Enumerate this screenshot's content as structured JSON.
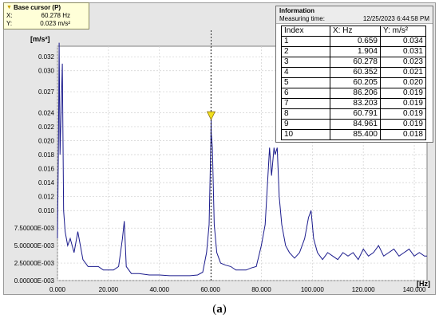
{
  "base_cursor": {
    "title": "Base cursor (P)",
    "x_label": "X:",
    "x_value": "60.278 Hz",
    "y_label": "Y:",
    "y_value": "0.023 m/s²"
  },
  "information": {
    "title": "Information",
    "measuring_time_label": "Measuring time:",
    "measuring_time_value": "12/25/2023 6:44:58 PM",
    "columns": [
      "Index",
      "X: Hz",
      "Y: m/s²"
    ],
    "rows": [
      [
        "1",
        "0.659",
        "0.034"
      ],
      [
        "2",
        "1.904",
        "0.031"
      ],
      [
        "3",
        "60.278",
        "0.023"
      ],
      [
        "4",
        "60.352",
        "0.021"
      ],
      [
        "5",
        "60.205",
        "0.020"
      ],
      [
        "6",
        "86.206",
        "0.019"
      ],
      [
        "7",
        "83.203",
        "0.019"
      ],
      [
        "8",
        "60.791",
        "0.019"
      ],
      [
        "9",
        "84.961",
        "0.019"
      ],
      [
        "10",
        "85.400",
        "0.018"
      ]
    ]
  },
  "caption": {
    "open": "(",
    "letter": "a",
    "close": ")"
  },
  "chart_data": {
    "type": "line",
    "title": "",
    "xlabel": "[Hz]",
    "ylabel": "[m/s²]",
    "xlim": [
      0,
      145
    ],
    "ylim": [
      0,
      0.0335
    ],
    "x_ticks": [
      0,
      20,
      40,
      60,
      80,
      100,
      120,
      140
    ],
    "x_tick_labels": [
      "0.000",
      "20.000",
      "40.000",
      "60.000",
      "80.000",
      "100.000",
      "120.000",
      "140.000"
    ],
    "y_ticks": [
      0,
      0.0025,
      0.005,
      0.0075,
      0.01,
      0.012,
      0.014,
      0.016,
      0.018,
      0.02,
      0.022,
      0.024,
      0.027,
      0.03,
      0.032
    ],
    "y_tick_labels": [
      "0.00000E-003",
      "2.50000E-003",
      "5.00000E-003",
      "7.50000E-003",
      "0.010",
      "0.012",
      "0.014",
      "0.016",
      "0.018",
      "0.020",
      "0.022",
      "0.024",
      "0.027",
      "0.030",
      "0.032"
    ],
    "grid": true,
    "line_color": "#1a1a8c",
    "cursor_color": "#f0e020",
    "cursor_x": 60.278,
    "cursor_y": 0.023,
    "series": [
      {
        "x": [
          0,
          0.4,
          0.659,
          1.0,
          1.4,
          1.904,
          2.4,
          3.0,
          4.0,
          5.0,
          6.5,
          8.0,
          10.0,
          12.0,
          14.0,
          16.0,
          18.0,
          20.0,
          22.0,
          24.0,
          25.5,
          26.2,
          27.0,
          29.0,
          32.0,
          36.0,
          40.0,
          44.0,
          48.0,
          52.0,
          55.0,
          57.0,
          58.5,
          59.5,
          60.205,
          60.278,
          60.352,
          60.791,
          61.5,
          62.5,
          64.0,
          66.0,
          68.0,
          70.0,
          72.0,
          74.0,
          76.0,
          78.0,
          80.0,
          81.5,
          83.203,
          84.0,
          84.961,
          85.4,
          86.206,
          87.0,
          88.0,
          89.5,
          91.0,
          93.0,
          95.0,
          97.0,
          98.5,
          99.5,
          100.5,
          102.0,
          104.0,
          106.0,
          108.0,
          110.0,
          112.0,
          114.0,
          116.0,
          118.0,
          120.0,
          122.0,
          124.0,
          126.0,
          128.0,
          130.0,
          132.0,
          134.0,
          136.0,
          138.0,
          140.0,
          142.0,
          144.0,
          145.0
        ],
        "y": [
          0.006,
          0.02,
          0.034,
          0.018,
          0.024,
          0.031,
          0.01,
          0.007,
          0.005,
          0.006,
          0.004,
          0.007,
          0.003,
          0.002,
          0.002,
          0.002,
          0.0015,
          0.0015,
          0.0015,
          0.002,
          0.006,
          0.0085,
          0.002,
          0.001,
          0.001,
          0.0008,
          0.0008,
          0.0007,
          0.0007,
          0.0007,
          0.0008,
          0.0012,
          0.004,
          0.008,
          0.02,
          0.023,
          0.021,
          0.019,
          0.008,
          0.004,
          0.0025,
          0.0022,
          0.002,
          0.0015,
          0.0015,
          0.0015,
          0.0018,
          0.002,
          0.005,
          0.008,
          0.019,
          0.015,
          0.019,
          0.018,
          0.019,
          0.012,
          0.008,
          0.005,
          0.004,
          0.0032,
          0.004,
          0.006,
          0.009,
          0.01,
          0.006,
          0.004,
          0.003,
          0.004,
          0.0035,
          0.003,
          0.004,
          0.0035,
          0.004,
          0.003,
          0.0045,
          0.0035,
          0.004,
          0.005,
          0.0035,
          0.004,
          0.0045,
          0.0035,
          0.004,
          0.0045,
          0.0035,
          0.004,
          0.0035,
          0.0035
        ]
      }
    ]
  }
}
